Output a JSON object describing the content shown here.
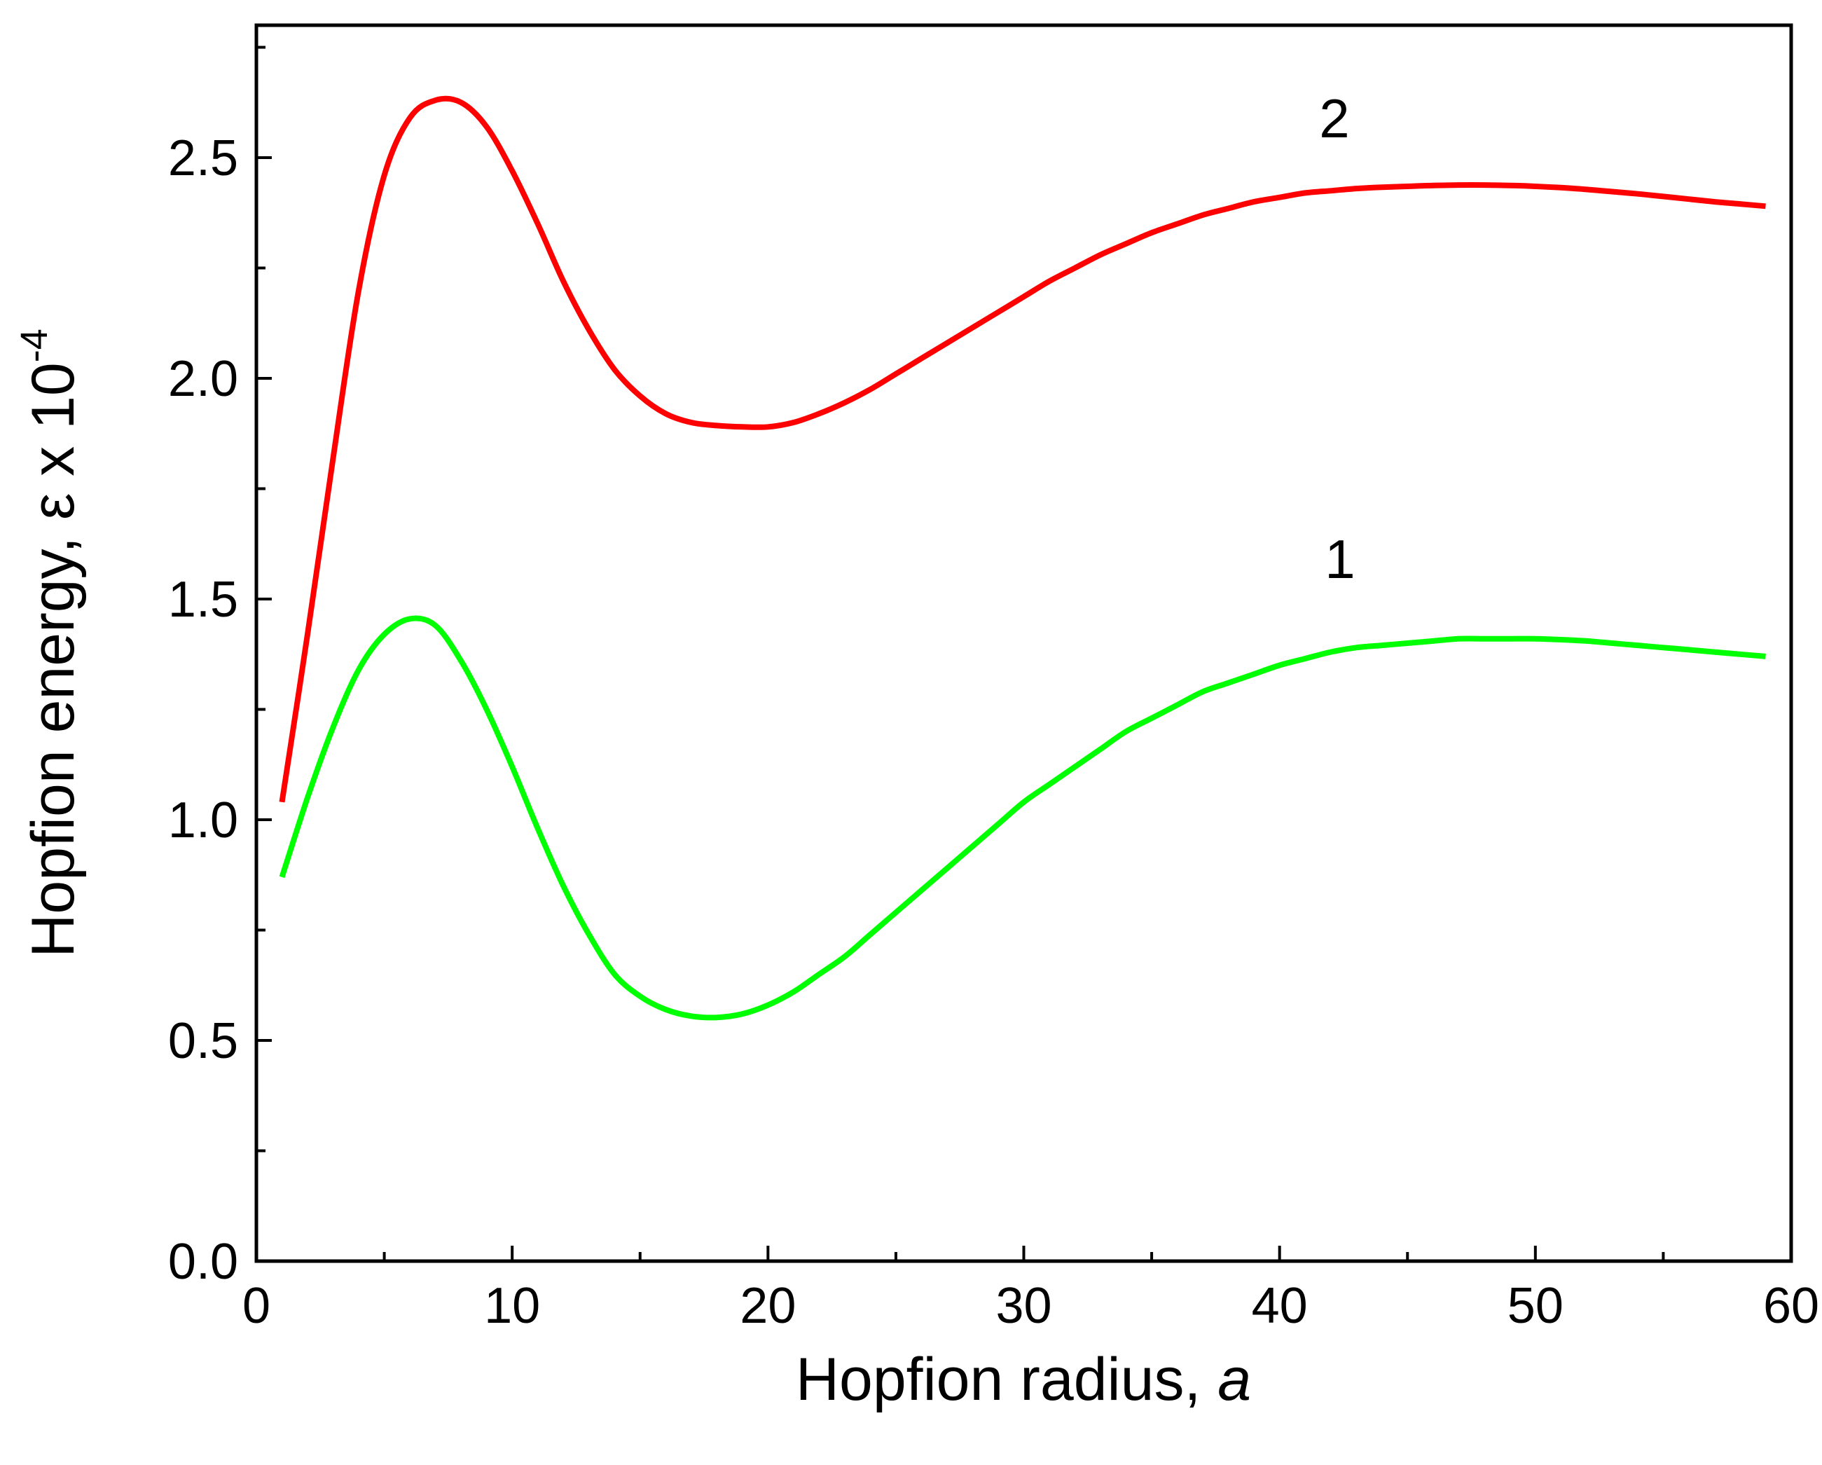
{
  "chart_data": {
    "type": "line",
    "xlabel": "Hopfion radius, ",
    "xlabel_var": "a",
    "ylabel": "Hopfion energy, ε x 10",
    "ylabel_exp": "-4",
    "xlim": [
      0,
      60
    ],
    "ylim": [
      0,
      2.8
    ],
    "xticks": [
      0,
      10,
      20,
      30,
      40,
      50,
      60
    ],
    "xtick_labels": [
      "0",
      "10",
      "20",
      "30",
      "40",
      "50",
      "60"
    ],
    "yticks": [
      0.0,
      0.5,
      1.0,
      1.5,
      2.0,
      2.5
    ],
    "ytick_labels": [
      "0.0",
      "0.5",
      "1.0",
      "1.5",
      "2.0",
      "2.5"
    ],
    "grid": false,
    "legend": "none",
    "series": [
      {
        "label": "1",
        "color": "#00ff00",
        "x": [
          1,
          2,
          3,
          4,
          5,
          6,
          7,
          8,
          9,
          10,
          11,
          12,
          13,
          14,
          15,
          16,
          17,
          18,
          19,
          20,
          21,
          22,
          23,
          24,
          25,
          26,
          27,
          28,
          29,
          30,
          31,
          32,
          33,
          34,
          35,
          36,
          37,
          38,
          39,
          40,
          41,
          42,
          43,
          44,
          45,
          46,
          47,
          48,
          49,
          50,
          51,
          52,
          53,
          54,
          55,
          56,
          57,
          58,
          59
        ],
        "y": [
          0.87,
          1.05,
          1.21,
          1.34,
          1.42,
          1.455,
          1.44,
          1.36,
          1.25,
          1.12,
          0.98,
          0.85,
          0.74,
          0.65,
          0.6,
          0.57,
          0.555,
          0.552,
          0.56,
          0.58,
          0.61,
          0.65,
          0.69,
          0.74,
          0.79,
          0.84,
          0.89,
          0.94,
          0.99,
          1.04,
          1.08,
          1.12,
          1.16,
          1.2,
          1.23,
          1.26,
          1.29,
          1.31,
          1.33,
          1.35,
          1.365,
          1.38,
          1.39,
          1.395,
          1.4,
          1.405,
          1.41,
          1.41,
          1.41,
          1.41,
          1.408,
          1.405,
          1.4,
          1.395,
          1.39,
          1.385,
          1.38,
          1.375,
          1.37
        ]
      },
      {
        "label": "2",
        "color": "#ff0000",
        "x": [
          1,
          2,
          3,
          4,
          5,
          6,
          7,
          8,
          9,
          10,
          11,
          12,
          13,
          14,
          15,
          16,
          17,
          18,
          19,
          20,
          21,
          22,
          23,
          24,
          25,
          26,
          27,
          28,
          29,
          30,
          31,
          32,
          33,
          34,
          35,
          36,
          37,
          38,
          39,
          40,
          41,
          42,
          43,
          44,
          45,
          46,
          47,
          48,
          49,
          50,
          51,
          52,
          53,
          54,
          55,
          56,
          57,
          58,
          59
        ],
        "y": [
          1.04,
          1.42,
          1.82,
          2.2,
          2.46,
          2.59,
          2.63,
          2.625,
          2.57,
          2.47,
          2.35,
          2.22,
          2.11,
          2.02,
          1.96,
          1.92,
          1.9,
          1.893,
          1.89,
          1.89,
          1.9,
          1.92,
          1.945,
          1.975,
          2.01,
          2.045,
          2.08,
          2.115,
          2.15,
          2.185,
          2.22,
          2.25,
          2.28,
          2.305,
          2.33,
          2.35,
          2.37,
          2.385,
          2.4,
          2.41,
          2.42,
          2.425,
          2.43,
          2.433,
          2.435,
          2.437,
          2.438,
          2.438,
          2.437,
          2.435,
          2.432,
          2.428,
          2.423,
          2.418,
          2.412,
          2.406,
          2.4,
          2.395,
          2.39
        ]
      }
    ]
  }
}
